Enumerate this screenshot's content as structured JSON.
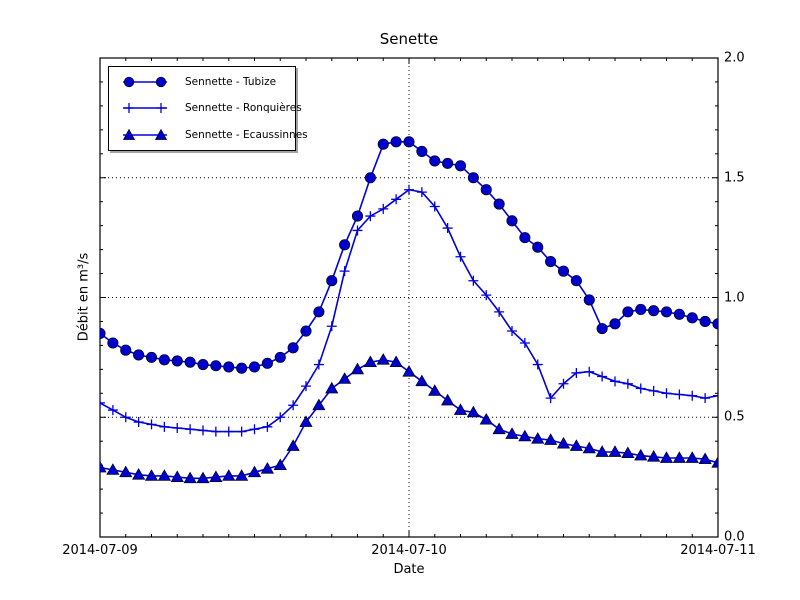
{
  "window": {
    "background": "#ffffff",
    "frame_color": "#000000"
  },
  "chart_data": {
    "type": "line",
    "title": "Senette",
    "xlabel": "Date",
    "ylabel": "Débit en m³/s",
    "legend_position": "upper-left",
    "grid": true,
    "grid_style": "dotted",
    "ylim": [
      0.0,
      2.0
    ],
    "x_range_hours": [
      0,
      48
    ],
    "x_tick_labels": [
      "2014-07-09",
      "2014-07-10",
      "2014-07-11"
    ],
    "x_tick_hours": [
      0,
      24,
      48
    ],
    "y_tick_labels": [
      "0.0",
      "0.5",
      "1.0",
      "1.5",
      "2.0"
    ],
    "y_tick_values": [
      0.0,
      0.5,
      1.0,
      1.5,
      2.0
    ],
    "line_color": "#0000dd",
    "marker_fill": "#0000cc",
    "marker_edge": "#00001a",
    "x_unit": "hours since 2014-07-09 00:00",
    "series": [
      {
        "name": "Sennette - Tubize",
        "marker": "circle",
        "values": [
          0.85,
          0.81,
          0.78,
          0.76,
          0.75,
          0.74,
          0.735,
          0.73,
          0.72,
          0.715,
          0.71,
          0.705,
          0.71,
          0.725,
          0.75,
          0.79,
          0.86,
          0.94,
          1.07,
          1.22,
          1.34,
          1.5,
          1.64,
          1.65,
          1.65,
          1.61,
          1.57,
          1.56,
          1.55,
          1.5,
          1.45,
          1.39,
          1.32,
          1.25,
          1.21,
          1.15,
          1.11,
          1.07,
          0.99,
          0.87,
          0.89,
          0.94,
          0.95,
          0.945,
          0.94,
          0.93,
          0.915,
          0.9,
          0.89
        ]
      },
      {
        "name": "Sennette - Ronquières",
        "marker": "plus",
        "values": [
          0.56,
          0.53,
          0.5,
          0.48,
          0.47,
          0.46,
          0.455,
          0.45,
          0.445,
          0.44,
          0.44,
          0.44,
          0.45,
          0.46,
          0.5,
          0.55,
          0.63,
          0.72,
          0.88,
          1.11,
          1.28,
          1.34,
          1.37,
          1.41,
          1.45,
          1.44,
          1.38,
          1.29,
          1.17,
          1.07,
          1.01,
          0.94,
          0.86,
          0.81,
          0.72,
          0.58,
          0.64,
          0.685,
          0.69,
          0.67,
          0.65,
          0.64,
          0.62,
          0.61,
          0.6,
          0.595,
          0.59,
          0.58,
          0.59
        ]
      },
      {
        "name": "Sennette - Ecaussinnes",
        "marker": "triangle",
        "values": [
          0.29,
          0.28,
          0.27,
          0.26,
          0.255,
          0.255,
          0.25,
          0.245,
          0.245,
          0.25,
          0.255,
          0.255,
          0.27,
          0.285,
          0.3,
          0.38,
          0.48,
          0.55,
          0.62,
          0.66,
          0.7,
          0.73,
          0.74,
          0.73,
          0.69,
          0.65,
          0.61,
          0.57,
          0.53,
          0.52,
          0.49,
          0.45,
          0.43,
          0.42,
          0.41,
          0.405,
          0.39,
          0.38,
          0.37,
          0.355,
          0.355,
          0.35,
          0.34,
          0.335,
          0.33,
          0.33,
          0.33,
          0.325,
          0.31
        ]
      }
    ]
  }
}
